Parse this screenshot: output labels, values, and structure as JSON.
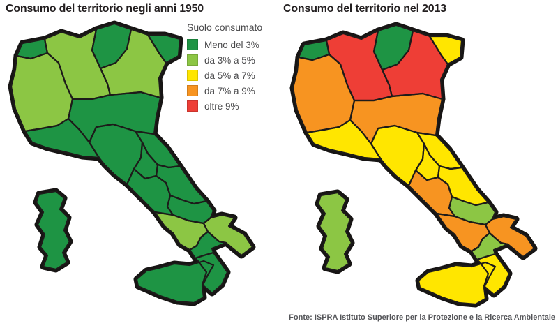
{
  "page": {
    "background": "#ffffff"
  },
  "map_style": {
    "outline_color": "#171514",
    "border_color": "#1d1b1a"
  },
  "left_map": {
    "title": "Consumo del territorio negli anni 1950",
    "regions": {
      "valle_daosta": "meno3",
      "piemonte": "da3a5",
      "lombardia": "da3a5",
      "trentino_alto_adige": "meno3",
      "veneto": "da3a5",
      "friuli_venezia_giulia": "meno3",
      "liguria": "meno3",
      "emilia_romagna": "meno3",
      "toscana": "meno3",
      "umbria": "meno3",
      "marche": "meno3",
      "lazio": "meno3",
      "abruzzo": "meno3",
      "molise": "meno3",
      "campania": "da3a5",
      "puglia": "da3a5",
      "basilicata": "meno3",
      "calabria": "meno3",
      "sicilia": "meno3",
      "sardegna": "meno3"
    }
  },
  "right_map": {
    "title": "Consumo del territorio nel 2013",
    "regions": {
      "valle_daosta": "meno3",
      "piemonte": "da7a9",
      "lombardia": "oltre9",
      "trentino_alto_adige": "meno3",
      "veneto": "oltre9",
      "friuli_venezia_giulia": "da5a7",
      "liguria": "da5a7",
      "emilia_romagna": "da7a9",
      "toscana": "da5a7",
      "umbria": "da5a7",
      "marche": "da5a7",
      "lazio": "da7a9",
      "abruzzo": "da5a7",
      "molise": "da3a5",
      "campania": "da7a9",
      "puglia": "da7a9",
      "basilicata": "da3a5",
      "calabria": "da5a7",
      "sicilia": "da5a7",
      "sardegna": "da3a5"
    }
  },
  "legend": {
    "title": "Suolo consumato",
    "items": [
      {
        "key": "meno3",
        "label": "Meno del 3%",
        "color": "#1e9444"
      },
      {
        "key": "da3a5",
        "label": "da 3% a 5%",
        "color": "#8cc644"
      },
      {
        "key": "da5a7",
        "label": "da 5% a 7%",
        "color": "#ffe600"
      },
      {
        "key": "da7a9",
        "label": "da 7% a 9%",
        "color": "#f79421"
      },
      {
        "key": "oltre9",
        "label": "oltre 9%",
        "color": "#ee3e36"
      }
    ]
  },
  "footer": {
    "source": "Fonte: ISPRA Istituto Superiore per la Protezione e la Ricerca Ambientale"
  },
  "chart_data": {
    "type": "heatmap",
    "subtype": "choropleth-map-pair",
    "titles": [
      "Consumo del territorio negli anni 1950",
      "Consumo del territorio nel 2013"
    ],
    "legend_title": "Suolo consumato",
    "bins": [
      "Meno del 3%",
      "da 3% a 5%",
      "da 5% a 7%",
      "da 7% a 9%",
      "oltre 9%"
    ],
    "bin_colors": [
      "#1e9444",
      "#8cc644",
      "#ffe600",
      "#f79421",
      "#ee3e36"
    ],
    "legend_position": "top-center-left-panel",
    "source": "Fonte: ISPRA Istituto Superiore per la Protezione e la Ricerca Ambientale",
    "regions": [
      {
        "name": "Valle d'Aosta",
        "anni_1950": "Meno del 3%",
        "anno_2013": "Meno del 3%"
      },
      {
        "name": "Piemonte",
        "anni_1950": "da 3% a 5%",
        "anno_2013": "da 7% a 9%"
      },
      {
        "name": "Lombardia",
        "anni_1950": "da 3% a 5%",
        "anno_2013": "oltre 9%"
      },
      {
        "name": "Trentino-Alto Adige",
        "anni_1950": "Meno del 3%",
        "anno_2013": "Meno del 3%"
      },
      {
        "name": "Veneto",
        "anni_1950": "da 3% a 5%",
        "anno_2013": "oltre 9%"
      },
      {
        "name": "Friuli-Venezia Giulia",
        "anni_1950": "Meno del 3%",
        "anno_2013": "da 5% a 7%"
      },
      {
        "name": "Liguria",
        "anni_1950": "Meno del 3%",
        "anno_2013": "da 5% a 7%"
      },
      {
        "name": "Emilia-Romagna",
        "anni_1950": "Meno del 3%",
        "anno_2013": "da 7% a 9%"
      },
      {
        "name": "Toscana",
        "anni_1950": "Meno del 3%",
        "anno_2013": "da 5% a 7%"
      },
      {
        "name": "Umbria",
        "anni_1950": "Meno del 3%",
        "anno_2013": "da 5% a 7%"
      },
      {
        "name": "Marche",
        "anni_1950": "Meno del 3%",
        "anno_2013": "da 5% a 7%"
      },
      {
        "name": "Lazio",
        "anni_1950": "Meno del 3%",
        "anno_2013": "da 7% a 9%"
      },
      {
        "name": "Abruzzo",
        "anni_1950": "Meno del 3%",
        "anno_2013": "da 5% a 7%"
      },
      {
        "name": "Molise",
        "anni_1950": "Meno del 3%",
        "anno_2013": "da 3% a 5%"
      },
      {
        "name": "Campania",
        "anni_1950": "da 3% a 5%",
        "anno_2013": "da 7% a 9%"
      },
      {
        "name": "Puglia",
        "anni_1950": "da 3% a 5%",
        "anno_2013": "da 7% a 9%"
      },
      {
        "name": "Basilicata",
        "anni_1950": "Meno del 3%",
        "anno_2013": "da 3% a 5%"
      },
      {
        "name": "Calabria",
        "anni_1950": "Meno del 3%",
        "anno_2013": "da 5% a 7%"
      },
      {
        "name": "Sicilia",
        "anni_1950": "Meno del 3%",
        "anno_2013": "da 5% a 7%"
      },
      {
        "name": "Sardegna",
        "anni_1950": "Meno del 3%",
        "anno_2013": "da 3% a 5%"
      }
    ]
  }
}
